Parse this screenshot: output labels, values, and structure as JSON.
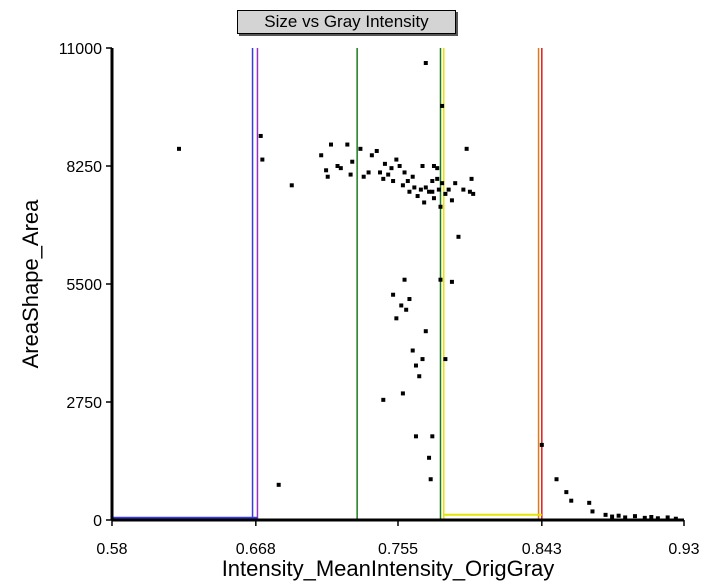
{
  "chart_data": {
    "type": "scatter",
    "title": "Size vs Gray Intensity",
    "xlabel": "Intensity_MeanIntensity_OrigGray",
    "ylabel": "AreaShape_Area",
    "xlim": [
      0.58,
      0.93
    ],
    "ylim": [
      0,
      11000
    ],
    "x_ticks": [
      "0.58",
      "0.668",
      "0.755",
      "0.843",
      "0.93"
    ],
    "y_ticks": [
      "0",
      "2750",
      "5500",
      "8250",
      "11000"
    ],
    "x_tick_values": [
      0.58,
      0.668,
      0.755,
      0.843,
      0.93
    ],
    "y_tick_values": [
      0,
      2750,
      5500,
      8250,
      11000
    ],
    "grid": false,
    "points": [
      [
        0.621,
        8650
      ],
      [
        0.671,
        8950
      ],
      [
        0.672,
        8400
      ],
      [
        0.682,
        820
      ],
      [
        0.69,
        7800
      ],
      [
        0.708,
        8500
      ],
      [
        0.711,
        8150
      ],
      [
        0.712,
        8000
      ],
      [
        0.714,
        8750
      ],
      [
        0.718,
        8250
      ],
      [
        0.72,
        8200
      ],
      [
        0.724,
        8750
      ],
      [
        0.726,
        8050
      ],
      [
        0.727,
        8350
      ],
      [
        0.732,
        8650
      ],
      [
        0.734,
        8000
      ],
      [
        0.737,
        8100
      ],
      [
        0.739,
        8500
      ],
      [
        0.742,
        8600
      ],
      [
        0.744,
        8100
      ],
      [
        0.746,
        7950
      ],
      [
        0.747,
        8300
      ],
      [
        0.749,
        8050
      ],
      [
        0.751,
        8200
      ],
      [
        0.752,
        7900
      ],
      [
        0.754,
        8400
      ],
      [
        0.756,
        8250
      ],
      [
        0.758,
        7800
      ],
      [
        0.759,
        8100
      ],
      [
        0.761,
        7900
      ],
      [
        0.762,
        7650
      ],
      [
        0.764,
        8000
      ],
      [
        0.765,
        7750
      ],
      [
        0.767,
        7550
      ],
      [
        0.769,
        7700
      ],
      [
        0.77,
        8250
      ],
      [
        0.771,
        7400
      ],
      [
        0.772,
        7750
      ],
      [
        0.774,
        7650
      ],
      [
        0.776,
        7900
      ],
      [
        0.777,
        7500
      ],
      [
        0.779,
        8200
      ],
      [
        0.78,
        7700
      ],
      [
        0.781,
        7300
      ],
      [
        0.782,
        7850
      ],
      [
        0.784,
        7600
      ],
      [
        0.786,
        7700
      ],
      [
        0.788,
        7450
      ],
      [
        0.79,
        7850
      ],
      [
        0.792,
        6600
      ],
      [
        0.795,
        7700
      ],
      [
        0.797,
        8650
      ],
      [
        0.799,
        7650
      ],
      [
        0.8,
        7950
      ],
      [
        0.801,
        7600
      ],
      [
        0.772,
        10650
      ],
      [
        0.777,
        8250
      ],
      [
        0.776,
        7650
      ],
      [
        0.782,
        9650
      ],
      [
        0.779,
        7950
      ],
      [
        0.752,
        5250
      ],
      [
        0.754,
        4700
      ],
      [
        0.757,
        5000
      ],
      [
        0.759,
        5600
      ],
      [
        0.76,
        4900
      ],
      [
        0.762,
        5150
      ],
      [
        0.764,
        3950
      ],
      [
        0.766,
        3600
      ],
      [
        0.768,
        3350
      ],
      [
        0.77,
        3750
      ],
      [
        0.746,
        2800
      ],
      [
        0.758,
        2950
      ],
      [
        0.772,
        4400
      ],
      [
        0.781,
        5600
      ],
      [
        0.784,
        3750
      ],
      [
        0.788,
        5550
      ],
      [
        0.766,
        1950
      ],
      [
        0.774,
        1450
      ],
      [
        0.776,
        1950
      ],
      [
        0.775,
        950
      ],
      [
        0.843,
        1750
      ],
      [
        0.852,
        950
      ],
      [
        0.858,
        650
      ],
      [
        0.861,
        450
      ],
      [
        0.872,
        400
      ],
      [
        0.874,
        200
      ],
      [
        0.882,
        120
      ],
      [
        0.886,
        80
      ],
      [
        0.89,
        100
      ],
      [
        0.894,
        60
      ],
      [
        0.9,
        90
      ],
      [
        0.906,
        50
      ],
      [
        0.91,
        70
      ],
      [
        0.914,
        40
      ],
      [
        0.92,
        60
      ],
      [
        0.925,
        30
      ]
    ],
    "lines": [
      {
        "name": "blue-line",
        "color": "#3a3adf",
        "x": 0.666
      },
      {
        "name": "purple-line",
        "color": "#9b2fc0",
        "x": 0.669
      },
      {
        "name": "green-line-1",
        "color": "#1f7a1f",
        "x": 0.73
      },
      {
        "name": "green-line-2",
        "color": "#1f7a1f",
        "x": 0.781
      },
      {
        "name": "yellow-line",
        "color": "#e6e600",
        "x": 0.783
      },
      {
        "name": "orange-line",
        "color": "#e07a1a",
        "x": 0.841
      },
      {
        "name": "red-line",
        "color": "#e01a1a",
        "x": 0.843
      }
    ],
    "segments": [
      {
        "name": "blue-bottom-segment",
        "color": "#3a3adf",
        "x1": 0.58,
        "x2": 0.669,
        "y": 30
      },
      {
        "name": "yellow-bottom-segment",
        "color": "#e6e600",
        "x1": 0.783,
        "x2": 0.843,
        "y": 100
      }
    ]
  }
}
